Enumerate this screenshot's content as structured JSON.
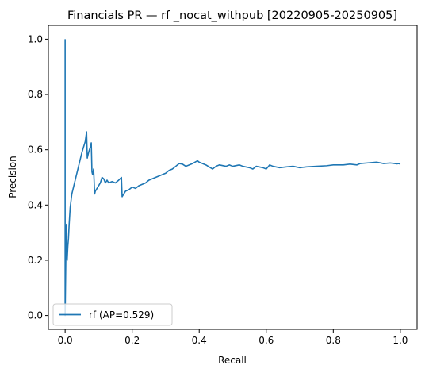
{
  "chart_data": {
    "type": "line",
    "title": "Financials PR — rf _nocat_withpub [20220905-20250905]",
    "xlabel": "Recall",
    "ylabel": "Precision",
    "xlim": [
      -0.05,
      1.05
    ],
    "ylim": [
      -0.05,
      1.05
    ],
    "xticks": [
      0.0,
      0.2,
      0.4,
      0.6,
      0.8,
      1.0
    ],
    "xtick_labels": [
      "0.0",
      "0.2",
      "0.4",
      "0.6",
      "0.8",
      "1.0"
    ],
    "yticks": [
      0.0,
      0.2,
      0.4,
      0.6,
      0.8,
      1.0
    ],
    "ytick_labels": [
      "0.0",
      "0.2",
      "0.4",
      "0.6",
      "0.8",
      "1.0"
    ],
    "grid": false,
    "legend_position": "lower-left",
    "series": [
      {
        "name": "rf (AP=0.529)",
        "color": "#1f77b4",
        "x": [
          1.0,
          0.995,
          0.99,
          0.97,
          0.95,
          0.93,
          0.9,
          0.88,
          0.87,
          0.85,
          0.83,
          0.8,
          0.78,
          0.75,
          0.72,
          0.7,
          0.68,
          0.66,
          0.64,
          0.62,
          0.61,
          0.6,
          0.59,
          0.57,
          0.56,
          0.55,
          0.53,
          0.52,
          0.5,
          0.49,
          0.48,
          0.46,
          0.45,
          0.44,
          0.42,
          0.41,
          0.4,
          0.395,
          0.38,
          0.37,
          0.36,
          0.35,
          0.34,
          0.33,
          0.32,
          0.31,
          0.3,
          0.29,
          0.28,
          0.27,
          0.26,
          0.25,
          0.24,
          0.23,
          0.22,
          0.21,
          0.2,
          0.19,
          0.18,
          0.17,
          0.168,
          0.16,
          0.15,
          0.14,
          0.13,
          0.125,
          0.12,
          0.115,
          0.11,
          0.105,
          0.1,
          0.095,
          0.09,
          0.088,
          0.085,
          0.082,
          0.08,
          0.078,
          0.075,
          0.07,
          0.066,
          0.064,
          0.06,
          0.05,
          0.04,
          0.03,
          0.02,
          0.015,
          0.012,
          0.01,
          0.008,
          0.006,
          0.005,
          0.004,
          0.003,
          0.002,
          0.001,
          0.0,
          0.0
        ],
        "y": [
          0.548,
          0.55,
          0.549,
          0.552,
          0.55,
          0.555,
          0.552,
          0.55,
          0.545,
          0.548,
          0.545,
          0.545,
          0.542,
          0.54,
          0.538,
          0.535,
          0.54,
          0.538,
          0.535,
          0.54,
          0.545,
          0.53,
          0.535,
          0.54,
          0.53,
          0.535,
          0.54,
          0.545,
          0.54,
          0.545,
          0.54,
          0.545,
          0.54,
          0.53,
          0.545,
          0.55,
          0.555,
          0.56,
          0.55,
          0.545,
          0.54,
          0.548,
          0.55,
          0.54,
          0.53,
          0.525,
          0.515,
          0.51,
          0.505,
          0.5,
          0.495,
          0.49,
          0.48,
          0.475,
          0.47,
          0.46,
          0.465,
          0.455,
          0.45,
          0.43,
          0.5,
          0.49,
          0.48,
          0.485,
          0.48,
          0.49,
          0.48,
          0.495,
          0.5,
          0.48,
          0.47,
          0.46,
          0.45,
          0.44,
          0.53,
          0.51,
          0.52,
          0.625,
          0.61,
          0.59,
          0.57,
          0.665,
          0.63,
          0.59,
          0.54,
          0.49,
          0.44,
          0.39,
          0.33,
          0.28,
          0.25,
          0.2,
          0.26,
          0.33,
          0.3,
          0.2,
          0.1,
          0.0,
          1.0
        ]
      }
    ]
  }
}
